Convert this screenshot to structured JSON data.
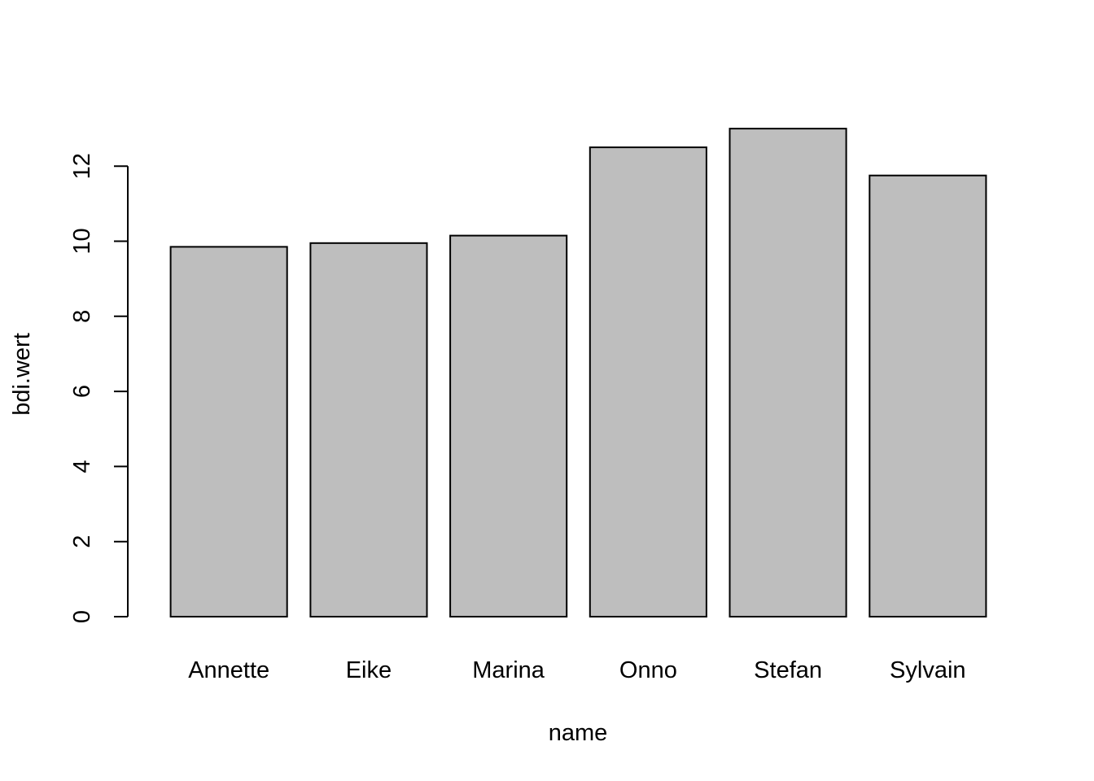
{
  "chart_data": {
    "type": "bar",
    "title": "",
    "xlabel": "name",
    "ylabel": "bdi.wert",
    "categories": [
      "Annette",
      "Eike",
      "Marina",
      "Onno",
      "Stefan",
      "Sylvain"
    ],
    "values": [
      9.85,
      9.95,
      10.15,
      12.5,
      13.0,
      11.75
    ],
    "ylim": [
      0,
      13
    ],
    "yticks": [
      "0",
      "2",
      "4",
      "6",
      "8",
      "10",
      "12"
    ],
    "grid": false,
    "colors": {
      "bar_fill": "#bebebe",
      "bar_stroke": "#000000",
      "axis": "#000000",
      "text": "#000000",
      "background": "#ffffff"
    }
  }
}
